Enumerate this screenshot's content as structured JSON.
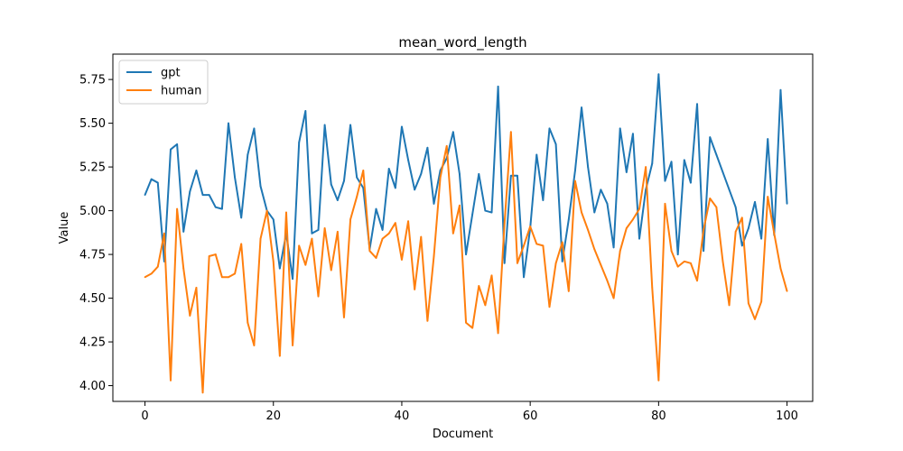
{
  "chart_data": {
    "type": "line",
    "title": "mean_word_length",
    "xlabel": "Document",
    "ylabel": "Value",
    "xlim": [
      -5,
      104
    ],
    "ylim": [
      3.91,
      5.895
    ],
    "xticks": [
      0,
      20,
      40,
      60,
      80,
      100
    ],
    "yticks": [
      4.0,
      4.25,
      4.5,
      4.75,
      5.0,
      5.25,
      5.5,
      5.75
    ],
    "ytick_labels": [
      "4.00",
      "4.25",
      "4.50",
      "4.75",
      "5.00",
      "5.25",
      "5.50",
      "5.75"
    ],
    "grid": false,
    "legend_position": "top-left",
    "series": [
      {
        "name": "gpt",
        "color": "#1f77b4",
        "values": [
          5.09,
          5.18,
          5.16,
          4.71,
          5.35,
          5.38,
          4.88,
          5.11,
          5.23,
          5.09,
          5.09,
          5.02,
          5.01,
          5.5,
          5.19,
          4.96,
          5.32,
          5.47,
          5.14,
          5.0,
          4.95,
          4.67,
          4.87,
          4.61,
          5.39,
          5.57,
          4.87,
          4.89,
          5.49,
          5.15,
          5.06,
          5.17,
          5.49,
          5.19,
          5.13,
          4.78,
          5.01,
          4.89,
          5.24,
          5.13,
          5.48,
          5.29,
          5.12,
          5.21,
          5.36,
          5.04,
          5.23,
          5.3,
          5.45,
          5.21,
          4.75,
          4.98,
          5.21,
          5.0,
          4.99,
          5.71,
          4.7,
          5.2,
          5.2,
          4.62,
          4.9,
          5.32,
          5.06,
          5.47,
          5.38,
          4.71,
          4.95,
          5.23,
          5.59,
          5.25,
          4.99,
          5.12,
          5.04,
          4.79,
          5.47,
          5.22,
          5.44,
          4.84,
          5.12,
          5.27,
          5.78,
          5.17,
          5.28,
          4.75,
          5.29,
          5.16,
          5.61,
          4.77,
          5.42,
          5.32,
          5.22,
          5.12,
          5.02,
          4.8,
          4.9,
          5.05,
          4.84,
          5.41,
          4.86,
          5.69,
          5.04
        ]
      },
      {
        "name": "human",
        "color": "#ff7f0e",
        "values": [
          4.62,
          4.64,
          4.68,
          4.87,
          4.03,
          5.01,
          4.67,
          4.4,
          4.56,
          3.96,
          4.74,
          4.75,
          4.62,
          4.62,
          4.64,
          4.81,
          4.36,
          4.23,
          4.84,
          5.0,
          4.71,
          4.17,
          4.99,
          4.23,
          4.8,
          4.69,
          4.84,
          4.51,
          4.9,
          4.66,
          4.88,
          4.39,
          4.95,
          5.08,
          5.23,
          4.77,
          4.73,
          4.84,
          4.87,
          4.93,
          4.72,
          4.94,
          4.55,
          4.85,
          4.37,
          4.74,
          5.19,
          5.37,
          4.87,
          5.03,
          4.36,
          4.33,
          4.57,
          4.46,
          4.63,
          4.3,
          4.93,
          5.45,
          4.7,
          4.8,
          4.91,
          4.81,
          4.8,
          4.45,
          4.7,
          4.82,
          4.54,
          5.17,
          4.99,
          4.89,
          4.78,
          4.69,
          4.6,
          4.5,
          4.77,
          4.9,
          4.95,
          5.01,
          5.25,
          4.56,
          4.03,
          5.04,
          4.77,
          4.68,
          4.71,
          4.7,
          4.6,
          4.89,
          5.07,
          5.02,
          4.71,
          4.46,
          4.88,
          4.96,
          4.47,
          4.38,
          4.48,
          5.08,
          4.87,
          4.67,
          4.54
        ]
      }
    ]
  }
}
